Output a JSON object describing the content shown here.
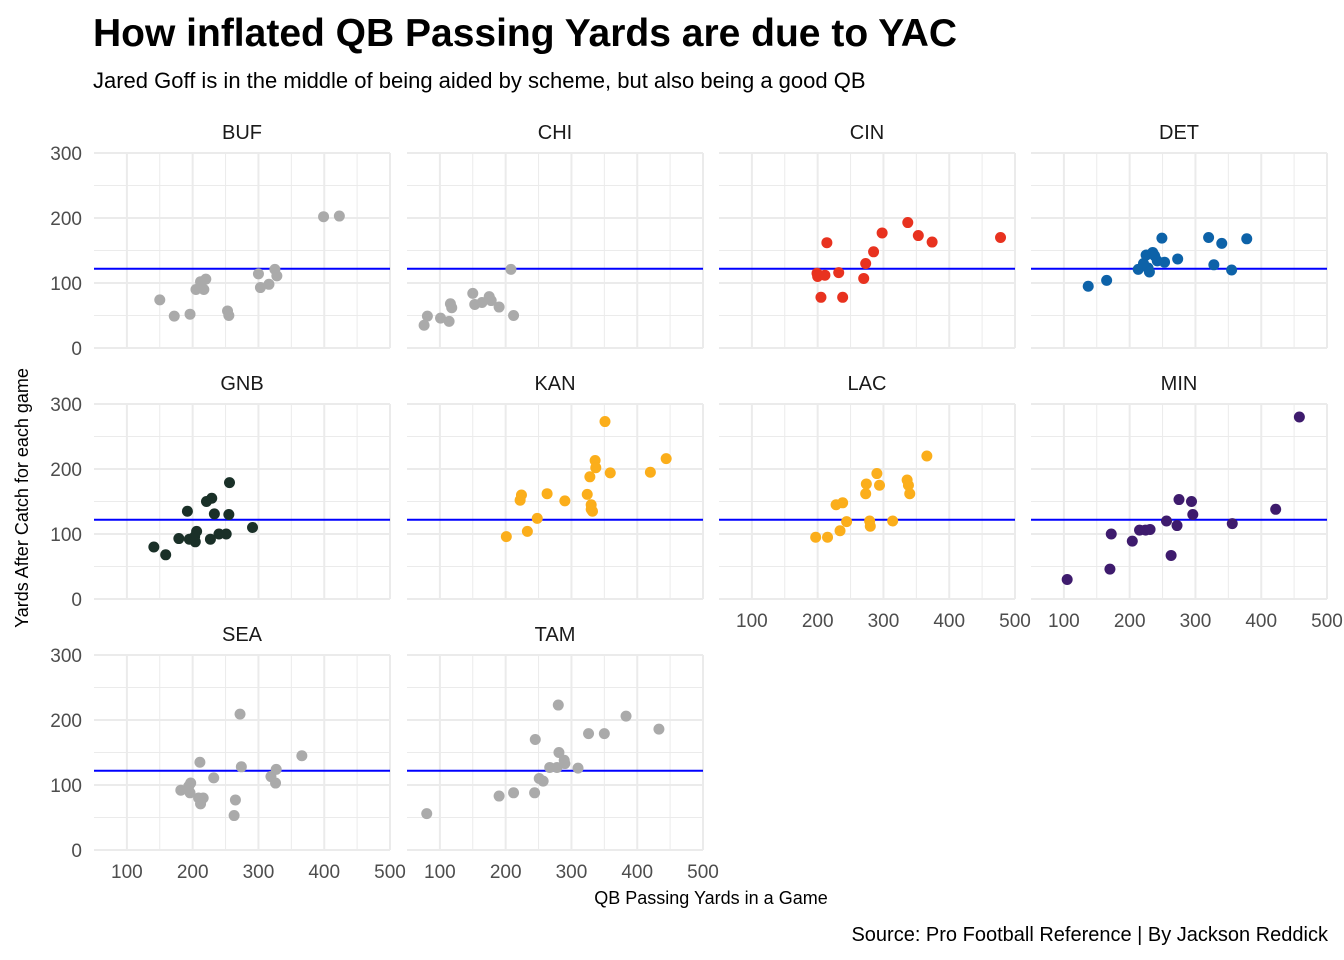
{
  "title": "How inflated QB Passing Yards are due to YAC",
  "subtitle": "Jared Goff is in the middle of being aided by scheme, but also being a good QB",
  "caption": "Source: Pro Football Reference | By Jackson Reddick",
  "chart_data": {
    "type": "scatter",
    "faceted": true,
    "xlabel": "QB Passing Yards in a Game",
    "ylabel": "Yards After Catch for each game",
    "xlim": [
      50,
      500
    ],
    "ylim": [
      0,
      300
    ],
    "x_ticks": [
      100,
      200,
      300,
      400,
      500
    ],
    "y_ticks": [
      0,
      100,
      200,
      300
    ],
    "reference_line": {
      "y": 122,
      "color": "#0000ff"
    },
    "grid": true,
    "panels": [
      {
        "name": "BUF",
        "color": "#aaaaaa",
        "points": [
          [
            150,
            74
          ],
          [
            172,
            49
          ],
          [
            196,
            52
          ],
          [
            205,
            90
          ],
          [
            212,
            102
          ],
          [
            217,
            90
          ],
          [
            220,
            106
          ],
          [
            253,
            57
          ],
          [
            255,
            50
          ],
          [
            300,
            114
          ],
          [
            303,
            93
          ],
          [
            316,
            98
          ],
          [
            325,
            121
          ],
          [
            328,
            111
          ],
          [
            399,
            202
          ],
          [
            423,
            203
          ]
        ]
      },
      {
        "name": "CHI",
        "color": "#aaaaaa",
        "points": [
          [
            76,
            35
          ],
          [
            81,
            49
          ],
          [
            101,
            46
          ],
          [
            114,
            41
          ],
          [
            116,
            68
          ],
          [
            118,
            62
          ],
          [
            150,
            84
          ],
          [
            153,
            67
          ],
          [
            164,
            70
          ],
          [
            175,
            79
          ],
          [
            178,
            73
          ],
          [
            190,
            63
          ],
          [
            208,
            121
          ],
          [
            212,
            50
          ]
        ]
      },
      {
        "name": "CIN",
        "color": "#e8321f",
        "points": [
          [
            199,
            115
          ],
          [
            200,
            110
          ],
          [
            205,
            78
          ],
          [
            211,
            112
          ],
          [
            214,
            162
          ],
          [
            232,
            116
          ],
          [
            238,
            78
          ],
          [
            270,
            107
          ],
          [
            273,
            130
          ],
          [
            285,
            148
          ],
          [
            298,
            177
          ],
          [
            337,
            193
          ],
          [
            353,
            173
          ],
          [
            374,
            163
          ],
          [
            478,
            170
          ]
        ]
      },
      {
        "name": "DET",
        "color": "#0d62a8",
        "points": [
          [
            137,
            95
          ],
          [
            165,
            104
          ],
          [
            213,
            121
          ],
          [
            221,
            130
          ],
          [
            225,
            143
          ],
          [
            228,
            123
          ],
          [
            230,
            117
          ],
          [
            235,
            147
          ],
          [
            238,
            142
          ],
          [
            242,
            134
          ],
          [
            249,
            169
          ],
          [
            253,
            132
          ],
          [
            273,
            137
          ],
          [
            320,
            170
          ],
          [
            328,
            128
          ],
          [
            340,
            161
          ],
          [
            355,
            120
          ],
          [
            378,
            168
          ]
        ]
      },
      {
        "name": "GNB",
        "color": "#1a3028",
        "points": [
          [
            141,
            80
          ],
          [
            159,
            68
          ],
          [
            179,
            93
          ],
          [
            192,
            135
          ],
          [
            195,
            92
          ],
          [
            203,
            96
          ],
          [
            204,
            88
          ],
          [
            206,
            104
          ],
          [
            221,
            150
          ],
          [
            227,
            92
          ],
          [
            229,
            155
          ],
          [
            233,
            131
          ],
          [
            240,
            100
          ],
          [
            251,
            100
          ],
          [
            255,
            130
          ],
          [
            256,
            179
          ],
          [
            291,
            110
          ]
        ]
      },
      {
        "name": "KAN",
        "color": "#fbae1b",
        "points": [
          [
            201,
            96
          ],
          [
            222,
            152
          ],
          [
            224,
            160
          ],
          [
            233,
            104
          ],
          [
            248,
            124
          ],
          [
            263,
            162
          ],
          [
            290,
            151
          ],
          [
            324,
            161
          ],
          [
            328,
            188
          ],
          [
            330,
            138
          ],
          [
            330,
            145
          ],
          [
            332,
            135
          ],
          [
            336,
            213
          ],
          [
            337,
            202
          ],
          [
            351,
            273
          ],
          [
            359,
            194
          ],
          [
            420,
            195
          ],
          [
            444,
            216
          ]
        ]
      },
      {
        "name": "LAC",
        "color": "#fbae1b",
        "points": [
          [
            197,
            95
          ],
          [
            215,
            95
          ],
          [
            228,
            145
          ],
          [
            234,
            105
          ],
          [
            238,
            148
          ],
          [
            244,
            119
          ],
          [
            273,
            162
          ],
          [
            274,
            177
          ],
          [
            279,
            120
          ],
          [
            280,
            112
          ],
          [
            290,
            193
          ],
          [
            294,
            175
          ],
          [
            314,
            120
          ],
          [
            336,
            183
          ],
          [
            338,
            175
          ],
          [
            340,
            162
          ],
          [
            366,
            220
          ]
        ]
      },
      {
        "name": "MIN",
        "color": "#3e1b6d",
        "points": [
          [
            105,
            30
          ],
          [
            170,
            46
          ],
          [
            172,
            100
          ],
          [
            204,
            89
          ],
          [
            215,
            106
          ],
          [
            224,
            106
          ],
          [
            231,
            107
          ],
          [
            256,
            120
          ],
          [
            263,
            67
          ],
          [
            272,
            113
          ],
          [
            275,
            153
          ],
          [
            294,
            150
          ],
          [
            296,
            130
          ],
          [
            356,
            116
          ],
          [
            422,
            138
          ],
          [
            458,
            280
          ]
        ]
      },
      {
        "name": "SEA",
        "color": "#aaaaaa",
        "points": [
          [
            182,
            92
          ],
          [
            194,
            98
          ],
          [
            196,
            88
          ],
          [
            197,
            103
          ],
          [
            209,
            80
          ],
          [
            211,
            135
          ],
          [
            212,
            71
          ],
          [
            216,
            80
          ],
          [
            232,
            111
          ],
          [
            263,
            53
          ],
          [
            265,
            77
          ],
          [
            272,
            209
          ],
          [
            274,
            128
          ],
          [
            319,
            113
          ],
          [
            326,
            103
          ],
          [
            327,
            124
          ],
          [
            366,
            145
          ]
        ]
      },
      {
        "name": "TAM",
        "color": "#aaaaaa",
        "points": [
          [
            80,
            56
          ],
          [
            190,
            83
          ],
          [
            212,
            88
          ],
          [
            244,
            88
          ],
          [
            245,
            170
          ],
          [
            251,
            110
          ],
          [
            257,
            106
          ],
          [
            267,
            127
          ],
          [
            278,
            127
          ],
          [
            280,
            223
          ],
          [
            281,
            150
          ],
          [
            289,
            138
          ],
          [
            290,
            133
          ],
          [
            310,
            126
          ],
          [
            326,
            179
          ],
          [
            350,
            179
          ],
          [
            383,
            206
          ],
          [
            433,
            186
          ]
        ]
      }
    ]
  }
}
